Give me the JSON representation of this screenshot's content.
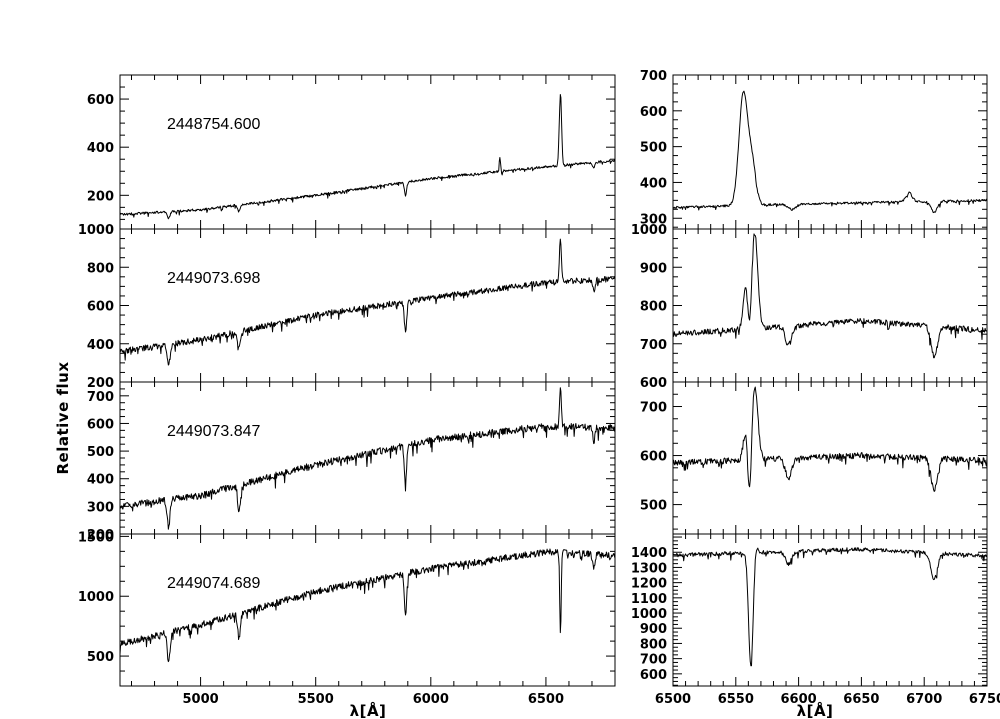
{
  "chart_data": {
    "type": "line",
    "ylabel": "Relative flux",
    "xlabel_left": "λ[Å]",
    "xlabel_right": "λ[Å]",
    "left_xlim": [
      4650,
      6800
    ],
    "left_xticks": [
      5000,
      5500,
      6000,
      6500
    ],
    "right_xlim": [
      6500,
      6750
    ],
    "right_xticks": [
      6500,
      6550,
      6600,
      6650,
      6700,
      6750
    ],
    "panels": [
      {
        "date": "2448754.600",
        "left_ylim": [
          60,
          700
        ],
        "left_yticks": [
          200,
          400,
          600
        ],
        "right_ylim": [
          270,
          700
        ],
        "right_yticks": [
          300,
          400,
          500,
          600,
          700
        ],
        "continuum": [
          [
            4650,
            120
          ],
          [
            5000,
            140
          ],
          [
            5500,
            200
          ],
          [
            6000,
            270
          ],
          [
            6300,
            300
          ],
          [
            6800,
            345
          ]
        ],
        "lines": [
          [
            4861,
            -25,
            6
          ],
          [
            5167,
            -20,
            6
          ],
          [
            5890,
            -55,
            5
          ],
          [
            6300,
            60,
            3
          ],
          [
            6563,
            300,
            5
          ],
          [
            6708,
            -20,
            5
          ]
        ],
        "noise": 10,
        "zoom_continuum": [
          [
            6500,
            330
          ],
          [
            6600,
            340
          ],
          [
            6750,
            350
          ]
        ],
        "zoom_lines": [
          [
            6556,
            310,
            3.5
          ],
          [
            6563,
            110,
            3
          ],
          [
            6595,
            -15,
            3
          ],
          [
            6708,
            -30,
            2.5
          ],
          [
            6688,
            25,
            2.5
          ]
        ],
        "zoom_noise": 6
      },
      {
        "date": "2449073.698",
        "left_ylim": [
          200,
          1000
        ],
        "left_yticks": [
          200,
          400,
          600,
          800,
          1000
        ],
        "right_ylim": [
          600,
          1000
        ],
        "right_yticks": [
          600,
          700,
          800,
          900,
          1000
        ],
        "continuum": [
          [
            4650,
            360
          ],
          [
            5000,
            420
          ],
          [
            5500,
            550
          ],
          [
            6000,
            640
          ],
          [
            6500,
            720
          ],
          [
            6800,
            740
          ]
        ],
        "lines": [
          [
            4861,
            -110,
            6
          ],
          [
            5167,
            -90,
            6
          ],
          [
            5890,
            -160,
            5
          ],
          [
            6563,
            230,
            4
          ],
          [
            6708,
            -60,
            5
          ]
        ],
        "noise": 30,
        "zoom_continuum": [
          [
            6500,
            725
          ],
          [
            6650,
            760
          ],
          [
            6750,
            735
          ]
        ],
        "zoom_lines": [
          [
            6558,
            110,
            2
          ],
          [
            6565,
            250,
            2.5
          ],
          [
            6561,
            -80,
            1.5
          ],
          [
            6592,
            -50,
            2.5
          ],
          [
            6708,
            -80,
            2.5
          ]
        ],
        "zoom_noise": 14
      },
      {
        "date": "2449073.847",
        "left_ylim": [
          200,
          750
        ],
        "left_yticks": [
          200,
          300,
          400,
          500,
          600,
          700
        ],
        "right_ylim": [
          440,
          750
        ],
        "right_yticks": [
          500,
          600,
          700
        ],
        "continuum": [
          [
            4650,
            300
          ],
          [
            5000,
            340
          ],
          [
            5500,
            450
          ],
          [
            6000,
            540
          ],
          [
            6500,
            590
          ],
          [
            6800,
            585
          ]
        ],
        "lines": [
          [
            4861,
            -100,
            6
          ],
          [
            5167,
            -90,
            6
          ],
          [
            5890,
            -140,
            5
          ],
          [
            6563,
            150,
            4
          ],
          [
            6708,
            -50,
            5
          ]
        ],
        "noise": 25,
        "zoom_continuum": [
          [
            6500,
            585
          ],
          [
            6650,
            600
          ],
          [
            6750,
            590
          ]
        ],
        "zoom_lines": [
          [
            6558,
            60,
            2
          ],
          [
            6565,
            150,
            2.5
          ],
          [
            6561,
            -120,
            1.5
          ],
          [
            6592,
            -40,
            2.5
          ],
          [
            6708,
            -65,
            2.5
          ]
        ],
        "zoom_noise": 12
      },
      {
        "date": "2449074.689",
        "left_ylim": [
          250,
          1520
        ],
        "left_yticks": [
          500,
          1000,
          1500
        ],
        "right_ylim": [
          520,
          1520
        ],
        "right_yticks": [
          600,
          700,
          800,
          900,
          1000,
          1100,
          1200,
          1300,
          1400
        ],
        "continuum": [
          [
            4650,
            600
          ],
          [
            5000,
            760
          ],
          [
            5500,
            1040
          ],
          [
            6000,
            1230
          ],
          [
            6500,
            1370
          ],
          [
            6800,
            1340
          ]
        ],
        "lines": [
          [
            4861,
            -250,
            6
          ],
          [
            5167,
            -200,
            6
          ],
          [
            5890,
            -320,
            5
          ],
          [
            6563,
            -700,
            3
          ],
          [
            6708,
            -120,
            5
          ]
        ],
        "noise": 55,
        "zoom_continuum": [
          [
            6500,
            1380
          ],
          [
            6650,
            1420
          ],
          [
            6750,
            1375
          ]
        ],
        "zoom_lines": [
          [
            6562,
            -750,
            1.8
          ],
          [
            6566,
            60,
            1.5
          ],
          [
            6592,
            -80,
            2.5
          ],
          [
            6708,
            -170,
            2.5
          ]
        ],
        "zoom_noise": 25
      }
    ]
  }
}
